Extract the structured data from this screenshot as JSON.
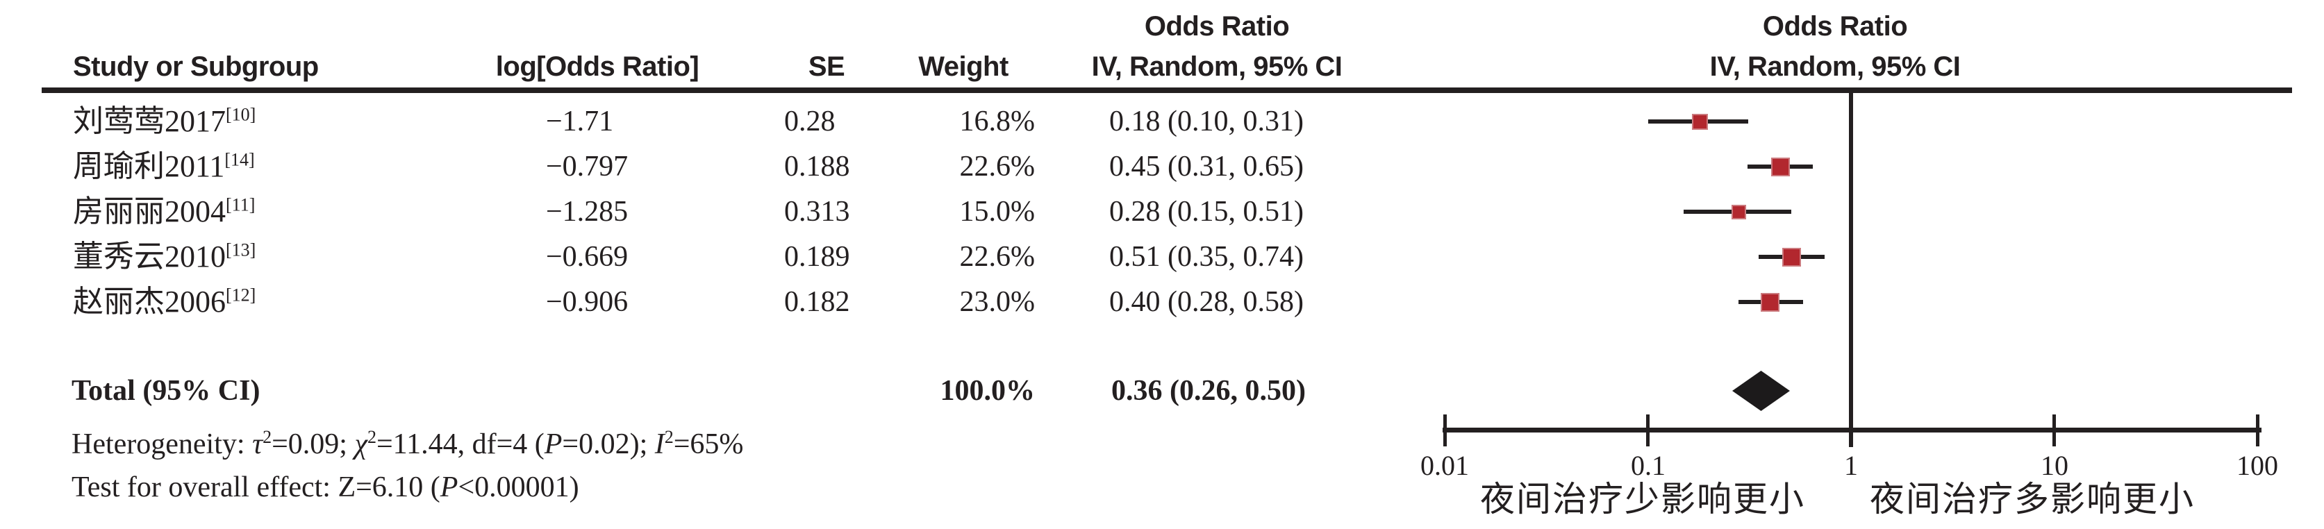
{
  "header": {
    "col_study": "Study or Subgroup",
    "col_log_or": "log[Odds Ratio]",
    "col_se": "SE",
    "col_weight": "Weight",
    "col_or_line1": "Odds Ratio",
    "col_or_line2": "IV, Random, 95% CI",
    "plot_line1": "Odds Ratio",
    "plot_line2": "IV, Random, 95% CI"
  },
  "chart_data": {
    "type": "scatter",
    "subtype": "forest-plot-meta-analysis",
    "effect_measure": "Odds Ratio, IV, Random, 95% CI",
    "x_scale": "log10",
    "xlim": [
      0.01,
      100
    ],
    "x_ticks": [
      {
        "label": "0.01",
        "value": 0.01
      },
      {
        "label": "0.1",
        "value": 0.1
      },
      {
        "label": "1",
        "value": 1
      },
      {
        "label": "10",
        "value": 10
      },
      {
        "label": "100",
        "value": 100
      }
    ],
    "x_axis_left_label": "夜间治疗少影响更小",
    "x_axis_right_label": "夜间治疗多影响更小",
    "studies": [
      {
        "name": "刘莺莺2017",
        "ref": "[10]",
        "log_or": -1.71,
        "log_or_text": "−1.71",
        "se": 0.28,
        "se_text": "0.28",
        "weight_pct": 16.8,
        "weight_text": "16.8%",
        "or": 0.18,
        "ci_low": 0.1,
        "ci_high": 0.31,
        "or_ci_text": "0.18 (0.10, 0.31)"
      },
      {
        "name": "周瑜利2011",
        "ref": "[14]",
        "log_or": -0.797,
        "log_or_text": "−0.797",
        "se": 0.188,
        "se_text": "0.188",
        "weight_pct": 22.6,
        "weight_text": "22.6%",
        "or": 0.45,
        "ci_low": 0.31,
        "ci_high": 0.65,
        "or_ci_text": "0.45 (0.31, 0.65)"
      },
      {
        "name": "房丽丽2004",
        "ref": "[11]",
        "log_or": -1.285,
        "log_or_text": "−1.285",
        "se": 0.313,
        "se_text": "0.313",
        "weight_pct": 15.0,
        "weight_text": "15.0%",
        "or": 0.28,
        "ci_low": 0.15,
        "ci_high": 0.51,
        "or_ci_text": "0.28 (0.15, 0.51)"
      },
      {
        "name": "董秀云2010",
        "ref": "[13]",
        "log_or": -0.669,
        "log_or_text": "−0.669",
        "se": 0.189,
        "se_text": "0.189",
        "weight_pct": 22.6,
        "weight_text": "22.6%",
        "or": 0.51,
        "ci_low": 0.35,
        "ci_high": 0.74,
        "or_ci_text": "0.51 (0.35, 0.74)"
      },
      {
        "name": "赵丽杰2006",
        "ref": "[12]",
        "log_or": -0.906,
        "log_or_text": "−0.906",
        "se": 0.182,
        "se_text": "0.182",
        "weight_pct": 23.0,
        "weight_text": "23.0%",
        "or": 0.4,
        "ci_low": 0.28,
        "ci_high": 0.58,
        "or_ci_text": "0.40 (0.28, 0.58)"
      }
    ],
    "total": {
      "label": "Total (95% CI)",
      "weight_pct": 100.0,
      "weight_text": "100.0%",
      "or": 0.36,
      "ci_low": 0.26,
      "ci_high": 0.5,
      "or_ci_text": "0.36 (0.26, 0.50)",
      "marker": "diamond"
    },
    "heterogeneity_text": "Heterogeneity: τ²=0.09; χ²=11.44, df=4 (P=0.02); I²=65%",
    "overall_effect_text": "Test for overall effect: Z=6.10 (P<0.00001)"
  },
  "stats": {
    "heterogeneity_parts": [
      {
        "t": "Heterogeneity: "
      },
      {
        "t": "τ",
        "i": true
      },
      {
        "t": "2",
        "sup": true
      },
      {
        "t": "=0.09; "
      },
      {
        "t": "χ",
        "i": true
      },
      {
        "t": "2",
        "sup": true
      },
      {
        "t": "=11.44, df=4 ("
      },
      {
        "t": "P",
        "i": true
      },
      {
        "t": "=0.02); "
      },
      {
        "t": "I",
        "i": true
      },
      {
        "t": "2",
        "sup": true
      },
      {
        "t": "=65%"
      }
    ],
    "overall_effect_parts": [
      {
        "t": "Test for overall effect: "
      },
      {
        "t": "Z"
      },
      {
        "t": "=6.10 ("
      },
      {
        "t": "P",
        "i": true
      },
      {
        "t": "<0.00001)"
      }
    ]
  },
  "colors": {
    "text": "#231f20",
    "line": "#231f20",
    "marker_square": "#b2272e",
    "marker_square_border": "#cb7a7e",
    "diamond": "#1c1a1b",
    "background": "#ffffff"
  }
}
